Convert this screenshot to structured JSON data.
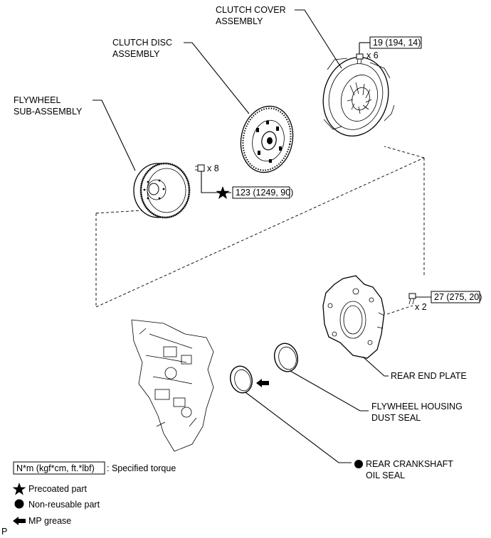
{
  "labels": {
    "clutch_cover": [
      "CLUTCH COVER",
      "ASSEMBLY"
    ],
    "clutch_disc": [
      "CLUTCH DISC",
      "ASSEMBLY"
    ],
    "flywheel": [
      "FLYWHEEL",
      "SUB-ASSEMBLY"
    ],
    "rear_end_plate": "REAR END PLATE",
    "dust_seal": [
      "FLYWHEEL HOUSING",
      "DUST SEAL"
    ],
    "crank_seal": [
      "REAR CRANKSHAFT",
      "OIL SEAL"
    ]
  },
  "torques": {
    "clutch_cover": "19 (194, 14)",
    "flywheel": "123 (1249, 90)",
    "rear_end_plate": "27 (275, 20)"
  },
  "quantities": {
    "clutch_cover_bolts": "x 6",
    "flywheel_bolts": "x 8",
    "end_plate_bolts": "x 2"
  },
  "legend": {
    "torque_unit": "N*m (kgf*cm, ft.*lbf)",
    "torque_desc": ": Specified torque",
    "precoated": "Precoated part",
    "non_reusable": "Non-reusable part",
    "mp_grease": "MP grease"
  },
  "corner_mark": "P",
  "icons": {
    "precoated": "star-icon",
    "non_reusable": "filled-circle-icon",
    "mp_grease": "left-arrow-icon"
  }
}
